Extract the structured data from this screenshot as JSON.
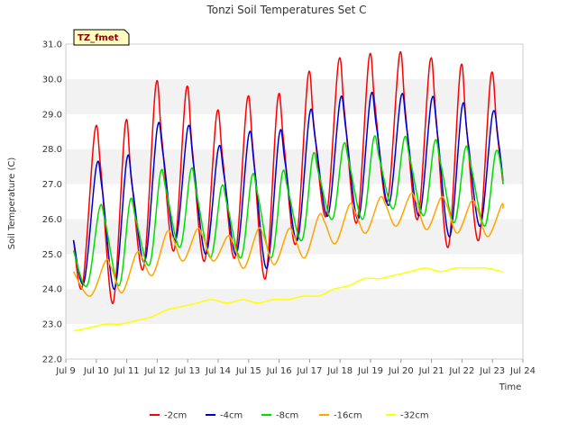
{
  "chart_data": {
    "type": "line",
    "title": "Tonzi Soil Temperatures Set C",
    "xlabel": "Time",
    "ylabel": "Soil Temperature (C)",
    "ylim": [
      22.0,
      31.0
    ],
    "xlim": [
      9.0,
      24.0
    ],
    "y_ticks": [
      "22.0",
      "23.0",
      "24.0",
      "25.0",
      "26.0",
      "27.0",
      "28.0",
      "29.0",
      "30.0",
      "31.0"
    ],
    "x_ticks": [
      "Jul 9",
      "Jul 10",
      "Jul 11",
      "Jul 12",
      "Jul 13",
      "Jul 14",
      "Jul 15",
      "Jul 16",
      "Jul 17",
      "Jul 18",
      "Jul 19",
      "Jul 20",
      "Jul 21",
      "Jul 22",
      "Jul 23",
      "Jul 24"
    ],
    "grid": "horizontal bands",
    "legend_position": "bottom",
    "annotation": "TZ_fmet",
    "series": [
      {
        "name": "-2cm",
        "color": "#ff0000",
        "x": [
          9.25,
          9.55,
          9.95,
          10.15,
          10.55,
          10.95,
          11.15,
          11.55,
          11.95,
          12.15,
          12.55,
          12.95,
          13.15,
          13.55,
          13.95,
          14.15,
          14.55,
          14.95,
          15.15,
          15.55,
          15.95,
          16.15,
          16.55,
          16.95,
          17.15,
          17.55,
          17.95,
          18.15,
          18.55,
          18.95,
          19.15,
          19.55,
          19.95,
          20.15,
          20.55,
          20.95,
          21.15,
          21.55,
          21.95,
          22.15,
          22.55,
          22.95,
          23.15,
          23.35
        ],
        "y": [
          25.4,
          24.1,
          28.5,
          27.4,
          23.6,
          28.7,
          27.2,
          24.6,
          29.8,
          28.3,
          25.1,
          29.7,
          28.0,
          24.8,
          29.0,
          27.7,
          24.9,
          29.4,
          27.9,
          24.3,
          29.4,
          28.2,
          25.3,
          30.1,
          28.6,
          26.1,
          30.5,
          29.0,
          25.9,
          30.6,
          29.2,
          26.5,
          30.7,
          29.0,
          26.0,
          30.5,
          28.9,
          25.2,
          30.3,
          28.6,
          25.4,
          30.1,
          28.5,
          27.0
        ]
      },
      {
        "name": "-4cm",
        "color": "#0000cc",
        "x": [
          9.25,
          9.6,
          10.0,
          10.2,
          10.6,
          11.0,
          11.2,
          11.6,
          12.0,
          12.2,
          12.6,
          13.0,
          13.2,
          13.6,
          14.0,
          14.2,
          14.6,
          15.0,
          15.2,
          15.6,
          16.0,
          16.2,
          16.6,
          17.0,
          17.2,
          17.6,
          18.0,
          18.2,
          18.6,
          19.0,
          19.2,
          19.6,
          20.0,
          20.2,
          20.6,
          21.0,
          21.2,
          21.6,
          22.0,
          22.2,
          22.6,
          23.0,
          23.2,
          23.35
        ],
        "y": [
          25.4,
          24.2,
          27.5,
          26.8,
          24.0,
          27.7,
          26.8,
          24.8,
          28.6,
          27.8,
          25.4,
          28.6,
          27.5,
          25.0,
          28.0,
          27.2,
          25.0,
          28.4,
          27.4,
          24.6,
          28.4,
          27.6,
          25.4,
          29.0,
          28.2,
          26.1,
          29.4,
          28.5,
          26.0,
          29.5,
          28.6,
          26.4,
          29.5,
          28.5,
          26.1,
          29.4,
          28.4,
          25.5,
          29.2,
          28.2,
          25.8,
          29.0,
          28.2,
          27.1
        ]
      },
      {
        "name": "-8cm",
        "color": "#00dd00",
        "x": [
          9.25,
          9.7,
          10.1,
          10.3,
          10.75,
          11.1,
          11.3,
          11.75,
          12.1,
          12.3,
          12.75,
          13.1,
          13.3,
          13.75,
          14.1,
          14.3,
          14.75,
          15.1,
          15.3,
          15.75,
          16.1,
          16.3,
          16.75,
          17.1,
          17.3,
          17.75,
          18.1,
          18.3,
          18.75,
          19.1,
          19.3,
          19.75,
          20.1,
          20.3,
          20.75,
          21.1,
          21.3,
          21.75,
          22.1,
          22.3,
          22.75,
          23.1,
          23.3,
          23.35
        ],
        "y": [
          25.1,
          24.1,
          26.3,
          25.9,
          24.1,
          26.5,
          26.0,
          24.7,
          27.3,
          26.8,
          25.2,
          27.4,
          26.7,
          24.9,
          26.9,
          26.4,
          24.9,
          27.2,
          26.7,
          24.9,
          27.3,
          26.8,
          25.4,
          27.8,
          27.3,
          26.0,
          28.1,
          27.6,
          26.0,
          28.3,
          27.7,
          26.3,
          28.3,
          27.7,
          26.1,
          28.2,
          27.6,
          25.9,
          28.0,
          27.5,
          25.8,
          27.9,
          27.4,
          27.0
        ]
      },
      {
        "name": "-16cm",
        "color": "#ffa500",
        "x": [
          9.25,
          9.8,
          10.3,
          10.5,
          10.85,
          11.3,
          11.5,
          11.85,
          12.3,
          12.5,
          12.85,
          13.3,
          13.5,
          13.85,
          14.3,
          14.5,
          14.85,
          15.3,
          15.5,
          15.85,
          16.3,
          16.5,
          16.85,
          17.3,
          17.5,
          17.85,
          18.3,
          18.5,
          18.85,
          19.3,
          19.5,
          19.85,
          20.3,
          20.5,
          20.85,
          21.3,
          21.5,
          21.85,
          22.3,
          22.5,
          22.85,
          23.3,
          23.35
        ],
        "y": [
          24.5,
          23.8,
          24.8,
          24.6,
          23.9,
          25.0,
          24.9,
          24.4,
          25.6,
          25.5,
          24.8,
          25.7,
          25.5,
          24.8,
          25.5,
          25.3,
          24.6,
          25.7,
          25.5,
          24.7,
          25.7,
          25.5,
          24.9,
          26.1,
          25.9,
          25.3,
          26.4,
          26.2,
          25.6,
          26.6,
          26.4,
          25.8,
          26.7,
          26.5,
          25.7,
          26.6,
          26.4,
          25.6,
          26.5,
          26.3,
          25.5,
          26.4,
          26.3
        ]
      },
      {
        "name": "-32cm",
        "color": "#ffff00",
        "x": [
          9.25,
          9.8,
          10.3,
          10.8,
          11.3,
          11.8,
          12.3,
          12.8,
          13.3,
          13.8,
          14.3,
          14.8,
          15.3,
          15.8,
          16.3,
          16.8,
          17.3,
          17.8,
          18.3,
          18.8,
          19.3,
          19.8,
          20.3,
          20.8,
          21.3,
          21.8,
          22.3,
          22.8,
          23.3,
          23.35
        ],
        "y": [
          22.8,
          22.9,
          23.0,
          23.0,
          23.1,
          23.2,
          23.4,
          23.5,
          23.6,
          23.7,
          23.6,
          23.7,
          23.6,
          23.7,
          23.7,
          23.8,
          23.8,
          24.0,
          24.1,
          24.3,
          24.3,
          24.4,
          24.5,
          24.6,
          24.5,
          24.6,
          24.6,
          24.6,
          24.5,
          24.5
        ]
      }
    ]
  }
}
